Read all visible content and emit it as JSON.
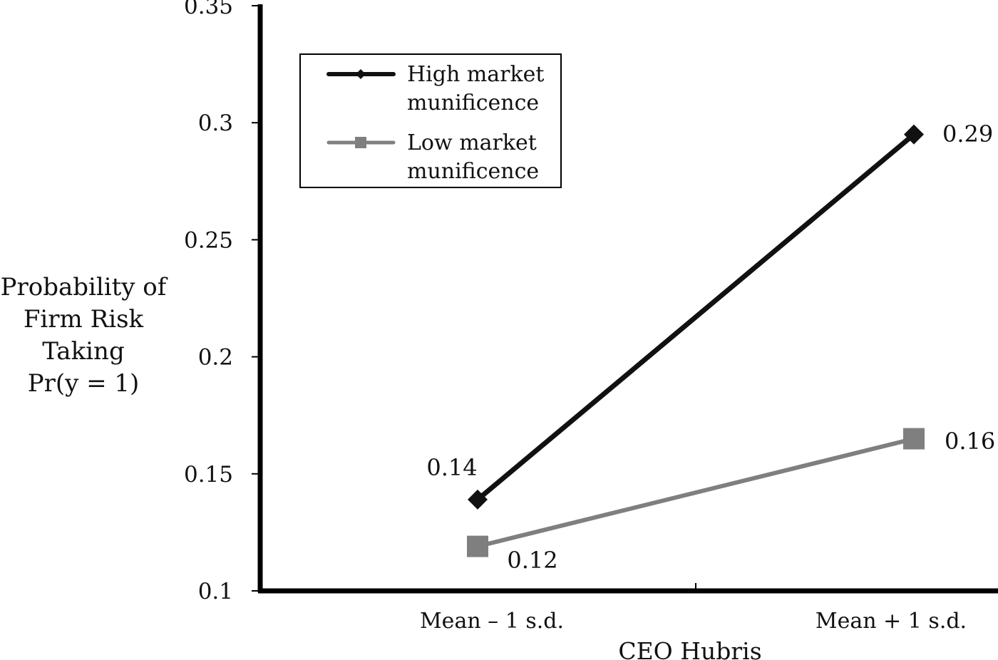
{
  "chart_data": {
    "type": "line",
    "title": "",
    "xlabel": "CEO Hubris",
    "ylabel_lines": [
      "Probability of",
      "Firm Risk",
      "Taking",
      "Pr(y = 1)"
    ],
    "categories": [
      "Mean – 1 s.d.",
      "Mean + 1 s.d."
    ],
    "ylim": [
      0.1,
      0.35
    ],
    "yticks": [
      0.1,
      0.15,
      0.2,
      0.25,
      0.3,
      0.35
    ],
    "ytick_labels": [
      "0.1",
      "0.15",
      "0.2",
      "0.25",
      "0.3",
      "0.35"
    ],
    "grid": false,
    "legend_position": "top-left",
    "series": [
      {
        "name_lines": [
          "High market",
          "munificence"
        ],
        "values": [
          0.139,
          0.295
        ],
        "data_labels": [
          "0.14",
          "0.29"
        ],
        "color": "#111111",
        "marker": "diamond"
      },
      {
        "name_lines": [
          "Low market",
          "munificence"
        ],
        "values": [
          0.119,
          0.165
        ],
        "data_labels": [
          "0.12",
          "0.16"
        ],
        "color": "#7f7f7f",
        "marker": "square"
      }
    ]
  }
}
